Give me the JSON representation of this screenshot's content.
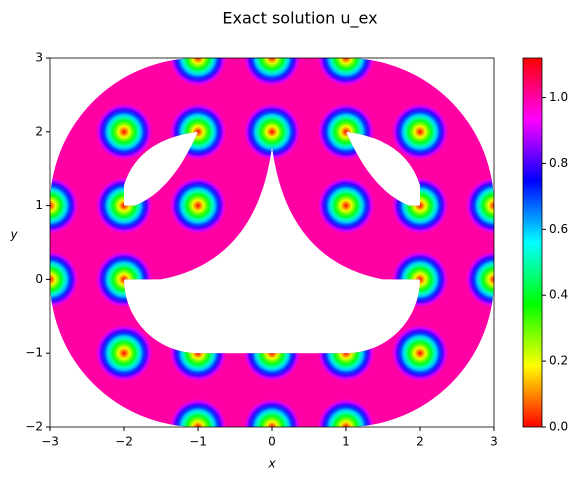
{
  "chart_data": {
    "type": "field",
    "title": "Exact solution u_ex",
    "xlabel": "x",
    "ylabel": "y",
    "x": [
      -1,
      0,
      1,
      -2,
      -1,
      0,
      1,
      2,
      -3,
      -2,
      -1,
      1,
      2,
      3,
      -3,
      -2,
      2,
      3,
      -2,
      -1,
      0,
      1,
      2,
      -1,
      0,
      1
    ],
    "y": [
      3,
      3,
      3,
      2,
      2,
      2,
      2,
      2,
      1,
      1,
      1,
      1,
      1,
      1,
      0,
      0,
      0,
      0,
      -1,
      -1,
      -1,
      -1,
      -1,
      -2,
      -2,
      -2
    ],
    "values": [
      0,
      0,
      0,
      0,
      0,
      0,
      0,
      0,
      0,
      0,
      0,
      0,
      0,
      0,
      0,
      0,
      0,
      0,
      0,
      0,
      0,
      0,
      0,
      0,
      0,
      0
    ],
    "background": 1.0,
    "colormap": "hsv",
    "xlim": [
      -3,
      3
    ],
    "ylim": [
      -2,
      3
    ],
    "xticks": [
      {
        "value": -3,
        "label": "−3"
      },
      {
        "value": -2,
        "label": "−2"
      },
      {
        "value": -1,
        "label": "−1"
      },
      0,
      1,
      2,
      3
    ],
    "yticks": [
      {
        "value": -2,
        "label": "−2"
      },
      {
        "value": -1,
        "label": "−1"
      },
      0,
      1,
      2,
      3
    ],
    "clim": [
      0,
      1.12
    ],
    "cticks": [
      {
        "value": 0,
        "label": "0.0"
      },
      {
        "value": 0.2,
        "label": "0.2"
      },
      {
        "value": 0.4,
        "label": "0.4"
      },
      {
        "value": 0.6,
        "label": "0.6"
      },
      {
        "value": 0.8,
        "label": "0.8"
      },
      {
        "value": 1,
        "label": "1.0"
      }
    ]
  }
}
